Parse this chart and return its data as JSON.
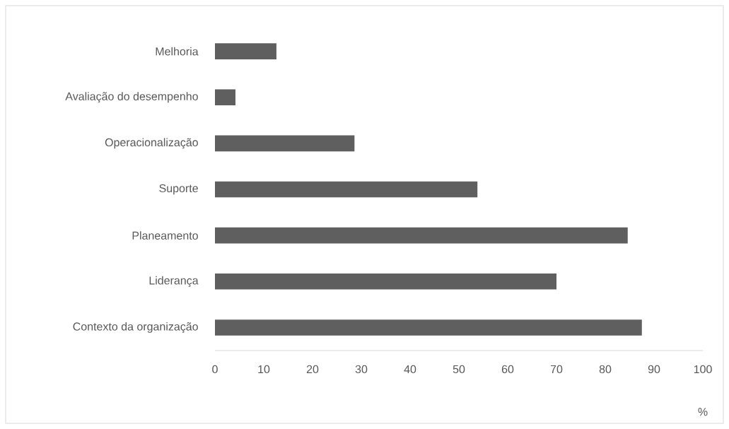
{
  "chart_data": {
    "type": "bar",
    "orientation": "horizontal",
    "categories": [
      "Melhoria",
      "Avaliação do desempenho",
      "Operacionalização",
      "Suporte",
      "Planeamento",
      "Liderança",
      "Contexto da organização"
    ],
    "values": [
      12.6,
      4.2,
      28.6,
      53.8,
      84.6,
      70.0,
      87.5
    ],
    "color": "#5f5f5f",
    "xlabel": "%",
    "xlim": [
      0,
      100
    ],
    "xticks": [
      0,
      10,
      20,
      30,
      40,
      50,
      60,
      70,
      80,
      90,
      100
    ]
  }
}
